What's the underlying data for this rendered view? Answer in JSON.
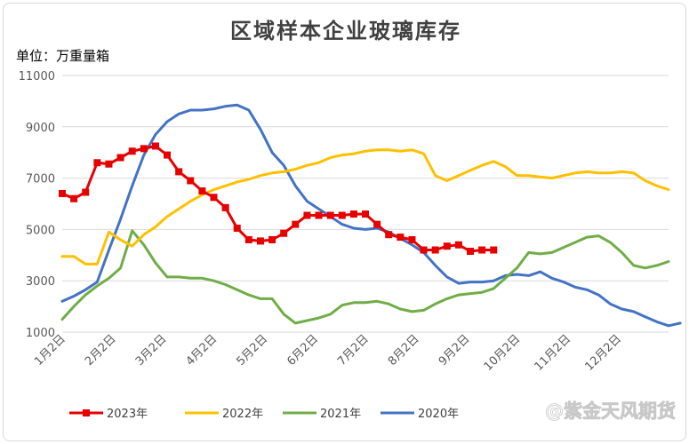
{
  "chart_data": {
    "type": "line",
    "title": "区域样本企业玻璃库存",
    "unit_label": "单位：万重量箱",
    "ylim": [
      1000,
      11000
    ],
    "yticks": [
      "1000",
      "3000",
      "5000",
      "7000",
      "9000",
      "11000"
    ],
    "xticks": [
      "1月2日",
      "2月2日",
      "3月2日",
      "4月2日",
      "5月2日",
      "6月2日",
      "7月2日",
      "8月2日",
      "9月2日",
      "10月2日",
      "11月2日",
      "12月2日"
    ],
    "x_range_weeks": [
      0,
      52
    ],
    "grid": "horizontal",
    "legend_position": "bottom",
    "watermark": "@紫金天风期货",
    "series": [
      {
        "name": "2023年",
        "color": "#e60000",
        "markers": true,
        "points": [
          [
            0,
            6400
          ],
          [
            1,
            6200
          ],
          [
            2,
            6450
          ],
          [
            3,
            7600
          ],
          [
            4,
            7550
          ],
          [
            5,
            7800
          ],
          [
            6,
            8050
          ],
          [
            7,
            8150
          ],
          [
            8,
            8250
          ],
          [
            9,
            7900
          ],
          [
            10,
            7250
          ],
          [
            11,
            6900
          ],
          [
            12,
            6500
          ],
          [
            13,
            6250
          ],
          [
            14,
            5850
          ],
          [
            15,
            5050
          ],
          [
            16,
            4600
          ],
          [
            17,
            4550
          ],
          [
            18,
            4600
          ],
          [
            19,
            4850
          ],
          [
            20,
            5200
          ],
          [
            21,
            5550
          ],
          [
            22,
            5550
          ],
          [
            23,
            5550
          ],
          [
            24,
            5550
          ],
          [
            25,
            5600
          ],
          [
            26,
            5600
          ],
          [
            27,
            5200
          ],
          [
            28,
            4800
          ],
          [
            29,
            4700
          ],
          [
            30,
            4600
          ],
          [
            31,
            4200
          ],
          [
            32,
            4200
          ],
          [
            33,
            4350
          ],
          [
            34,
            4400
          ],
          [
            35,
            4150
          ],
          [
            36,
            4200
          ],
          [
            37,
            4200
          ]
        ]
      },
      {
        "name": "2022年",
        "color": "#ffc000",
        "markers": false,
        "points": [
          [
            0,
            3950
          ],
          [
            1,
            3950
          ],
          [
            2,
            3650
          ],
          [
            3,
            3650
          ],
          [
            4,
            4900
          ],
          [
            5,
            4600
          ],
          [
            6,
            4350
          ],
          [
            7,
            4800
          ],
          [
            8,
            5100
          ],
          [
            9,
            5500
          ],
          [
            10,
            5800
          ],
          [
            11,
            6100
          ],
          [
            12,
            6350
          ],
          [
            13,
            6550
          ],
          [
            14,
            6700
          ],
          [
            15,
            6850
          ],
          [
            16,
            6950
          ],
          [
            17,
            7100
          ],
          [
            18,
            7200
          ],
          [
            19,
            7250
          ],
          [
            20,
            7350
          ],
          [
            21,
            7500
          ],
          [
            22,
            7600
          ],
          [
            23,
            7800
          ],
          [
            24,
            7900
          ],
          [
            25,
            7950
          ],
          [
            26,
            8050
          ],
          [
            27,
            8100
          ],
          [
            28,
            8100
          ],
          [
            29,
            8050
          ],
          [
            30,
            8100
          ],
          [
            31,
            7950
          ],
          [
            32,
            7100
          ],
          [
            33,
            6900
          ],
          [
            34,
            7100
          ],
          [
            35,
            7300
          ],
          [
            36,
            7500
          ],
          [
            37,
            7650
          ],
          [
            38,
            7450
          ],
          [
            39,
            7100
          ],
          [
            40,
            7100
          ],
          [
            41,
            7050
          ],
          [
            42,
            7000
          ],
          [
            43,
            7100
          ],
          [
            44,
            7200
          ],
          [
            45,
            7250
          ],
          [
            46,
            7200
          ],
          [
            47,
            7200
          ],
          [
            48,
            7250
          ],
          [
            49,
            7200
          ],
          [
            50,
            6900
          ],
          [
            51,
            6700
          ],
          [
            52,
            6550
          ]
        ]
      },
      {
        "name": "2021年",
        "color": "#70ad47",
        "markers": false,
        "points": [
          [
            0,
            1500
          ],
          [
            1,
            2000
          ],
          [
            2,
            2450
          ],
          [
            3,
            2800
          ],
          [
            4,
            3100
          ],
          [
            5,
            3500
          ],
          [
            6,
            4950
          ],
          [
            7,
            4400
          ],
          [
            8,
            3700
          ],
          [
            9,
            3150
          ],
          [
            10,
            3150
          ],
          [
            11,
            3100
          ],
          [
            12,
            3100
          ],
          [
            13,
            3000
          ],
          [
            14,
            2850
          ],
          [
            15,
            2650
          ],
          [
            16,
            2450
          ],
          [
            17,
            2300
          ],
          [
            18,
            2300
          ],
          [
            19,
            1700
          ],
          [
            20,
            1350
          ],
          [
            21,
            1450
          ],
          [
            22,
            1550
          ],
          [
            23,
            1700
          ],
          [
            24,
            2050
          ],
          [
            25,
            2150
          ],
          [
            26,
            2150
          ],
          [
            27,
            2200
          ],
          [
            28,
            2100
          ],
          [
            29,
            1900
          ],
          [
            30,
            1800
          ],
          [
            31,
            1850
          ],
          [
            32,
            2100
          ],
          [
            33,
            2300
          ],
          [
            34,
            2450
          ],
          [
            35,
            2500
          ],
          [
            36,
            2550
          ],
          [
            37,
            2700
          ],
          [
            38,
            3100
          ],
          [
            39,
            3500
          ],
          [
            40,
            4100
          ],
          [
            41,
            4050
          ],
          [
            42,
            4100
          ],
          [
            43,
            4300
          ],
          [
            44,
            4500
          ],
          [
            45,
            4700
          ],
          [
            46,
            4750
          ],
          [
            47,
            4500
          ],
          [
            48,
            4100
          ],
          [
            49,
            3600
          ],
          [
            50,
            3500
          ],
          [
            51,
            3600
          ],
          [
            52,
            3750
          ]
        ]
      },
      {
        "name": "2020年",
        "color": "#4472c4",
        "markers": false,
        "points": [
          [
            0,
            2200
          ],
          [
            1,
            2400
          ],
          [
            2,
            2650
          ],
          [
            3,
            2950
          ],
          [
            4,
            4200
          ],
          [
            5,
            5400
          ],
          [
            6,
            6700
          ],
          [
            7,
            7900
          ],
          [
            8,
            8700
          ],
          [
            9,
            9200
          ],
          [
            10,
            9500
          ],
          [
            11,
            9650
          ],
          [
            12,
            9650
          ],
          [
            13,
            9700
          ],
          [
            14,
            9800
          ],
          [
            15,
            9850
          ],
          [
            16,
            9650
          ],
          [
            17,
            8900
          ],
          [
            18,
            8000
          ],
          [
            19,
            7500
          ],
          [
            20,
            6700
          ],
          [
            21,
            6100
          ],
          [
            22,
            5800
          ],
          [
            23,
            5500
          ],
          [
            24,
            5200
          ],
          [
            25,
            5050
          ],
          [
            26,
            5000
          ],
          [
            27,
            5050
          ],
          [
            28,
            4900
          ],
          [
            29,
            4650
          ],
          [
            30,
            4400
          ],
          [
            31,
            4100
          ],
          [
            32,
            3600
          ],
          [
            33,
            3150
          ],
          [
            34,
            2900
          ],
          [
            35,
            2950
          ],
          [
            36,
            2950
          ],
          [
            37,
            3000
          ],
          [
            38,
            3200
          ],
          [
            39,
            3250
          ],
          [
            40,
            3200
          ],
          [
            41,
            3350
          ],
          [
            42,
            3100
          ],
          [
            43,
            2950
          ],
          [
            44,
            2750
          ],
          [
            45,
            2650
          ],
          [
            46,
            2450
          ],
          [
            47,
            2100
          ],
          [
            48,
            1900
          ],
          [
            49,
            1800
          ],
          [
            50,
            1600
          ],
          [
            51,
            1400
          ],
          [
            52,
            1250
          ],
          [
            53,
            1350
          ]
        ]
      }
    ]
  }
}
